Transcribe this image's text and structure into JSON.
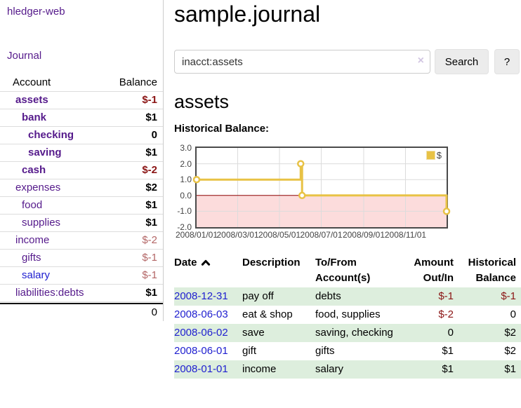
{
  "brand": "hledger-web",
  "sidebar": {
    "journal_link": "Journal",
    "accounts": {
      "header_account": "Account",
      "header_balance": "Balance",
      "rows": [
        {
          "name": "assets",
          "depth": 0,
          "bold": true,
          "balance": "$-1",
          "tone": "neg"
        },
        {
          "name": "bank",
          "depth": 1,
          "bold": true,
          "balance": "$1",
          "tone": "pos"
        },
        {
          "name": "checking",
          "depth": 2,
          "bold": true,
          "balance": "0",
          "tone": "pos"
        },
        {
          "name": "saving",
          "depth": 2,
          "bold": true,
          "balance": "$1",
          "tone": "pos"
        },
        {
          "name": "cash",
          "depth": 1,
          "bold": true,
          "balance": "$-2",
          "tone": "neg"
        },
        {
          "name": "expenses",
          "depth": 0,
          "bold": false,
          "balance": "$2",
          "tone": "pos"
        },
        {
          "name": "food",
          "depth": 1,
          "bold": false,
          "balance": "$1",
          "tone": "pos"
        },
        {
          "name": "supplies",
          "depth": 1,
          "bold": false,
          "balance": "$1",
          "tone": "pos"
        },
        {
          "name": "income",
          "depth": 0,
          "bold": false,
          "balance": "$-2",
          "tone": "negsoft"
        },
        {
          "name": "gifts",
          "depth": 1,
          "bold": false,
          "balance": "$-1",
          "tone": "negsoft"
        },
        {
          "name": "salary",
          "depth": 1,
          "bold": false,
          "balance": "$-1",
          "tone": "negsoft",
          "link_color": "blue"
        },
        {
          "name": "liabilities:debts",
          "depth": 0,
          "bold": false,
          "balance": "$1",
          "tone": "pos"
        }
      ],
      "total": "0"
    }
  },
  "header": {
    "title": "sample.journal"
  },
  "search": {
    "value": "inacct:assets",
    "clear_icon": "×",
    "search_button": "Search",
    "help_button": "?"
  },
  "account_page": {
    "heading": "assets",
    "chart_title": "Historical Balance:"
  },
  "chart_data": {
    "type": "line",
    "step": true,
    "title": "Historical Balance:",
    "series": [
      {
        "name": "$",
        "color": "#e8c245",
        "points": [
          {
            "x": "2008-01-01",
            "y": 1.0
          },
          {
            "x": "2008-06-01",
            "y": 2.0
          },
          {
            "x": "2008-06-03",
            "y": 0.0
          },
          {
            "x": "2008-12-31",
            "y": -1.0
          }
        ]
      }
    ],
    "xrange": [
      "2008-01-01",
      "2008-12-31"
    ],
    "ylim": [
      -2.0,
      3.0
    ],
    "ytick_values": [
      3,
      2,
      1,
      0,
      -1,
      -2
    ],
    "ytick_labels": [
      "3.0",
      "2.0",
      "1.0",
      "0.0",
      "-1.0",
      "-2.0"
    ],
    "xtick_dates": [
      "2008-01-01",
      "2008-03-01",
      "2008-05-01",
      "2008-07-01",
      "2008-09-01",
      "2008-11-01"
    ],
    "xtick_labels": [
      "2008/01/01",
      "2008/03/01",
      "2008/05/01",
      "2008/07/01",
      "2008/09/01",
      "2008/11/01"
    ],
    "legend_position": "top-right",
    "grid": true,
    "negative_region_color": "#fcdcdc",
    "zero_line_color": "#8b0000"
  },
  "register": {
    "headers": {
      "date": "Date",
      "description": "Description",
      "accounts": "To/From Account(s)",
      "amount": "Amount Out/In",
      "balance": "Historical Balance"
    },
    "rows": [
      {
        "date": "2008-12-31",
        "description": "pay off",
        "accounts": "debts",
        "amount": "$-1",
        "amount_tone": "neg",
        "balance": "$-1",
        "balance_tone": "neg"
      },
      {
        "date": "2008-06-03",
        "description": "eat & shop",
        "accounts": "food, supplies",
        "amount": "$-2",
        "amount_tone": "neg",
        "balance": "0",
        "balance_tone": "plain"
      },
      {
        "date": "2008-06-02",
        "description": "save",
        "accounts": "saving, checking",
        "amount": "0",
        "amount_tone": "plain",
        "balance": "$2",
        "balance_tone": "plain"
      },
      {
        "date": "2008-06-01",
        "description": "gift",
        "accounts": "gifts",
        "amount": "$1",
        "amount_tone": "plain",
        "balance": "$2",
        "balance_tone": "plain"
      },
      {
        "date": "2008-01-01",
        "description": "income",
        "accounts": "salary",
        "amount": "$1",
        "amount_tone": "plain",
        "balance": "$1",
        "balance_tone": "plain"
      }
    ]
  },
  "colors": {
    "link_purple": "#551a8b",
    "link_blue": "#2020d0",
    "negative_strong": "#8b1515",
    "negative_soft": "#b36666",
    "row_shade_green": "#ddeedd",
    "chart_line_gold": "#e8c245",
    "chart_negative_pink": "#fcdcdc",
    "chart_zero_line": "#8b0000"
  }
}
